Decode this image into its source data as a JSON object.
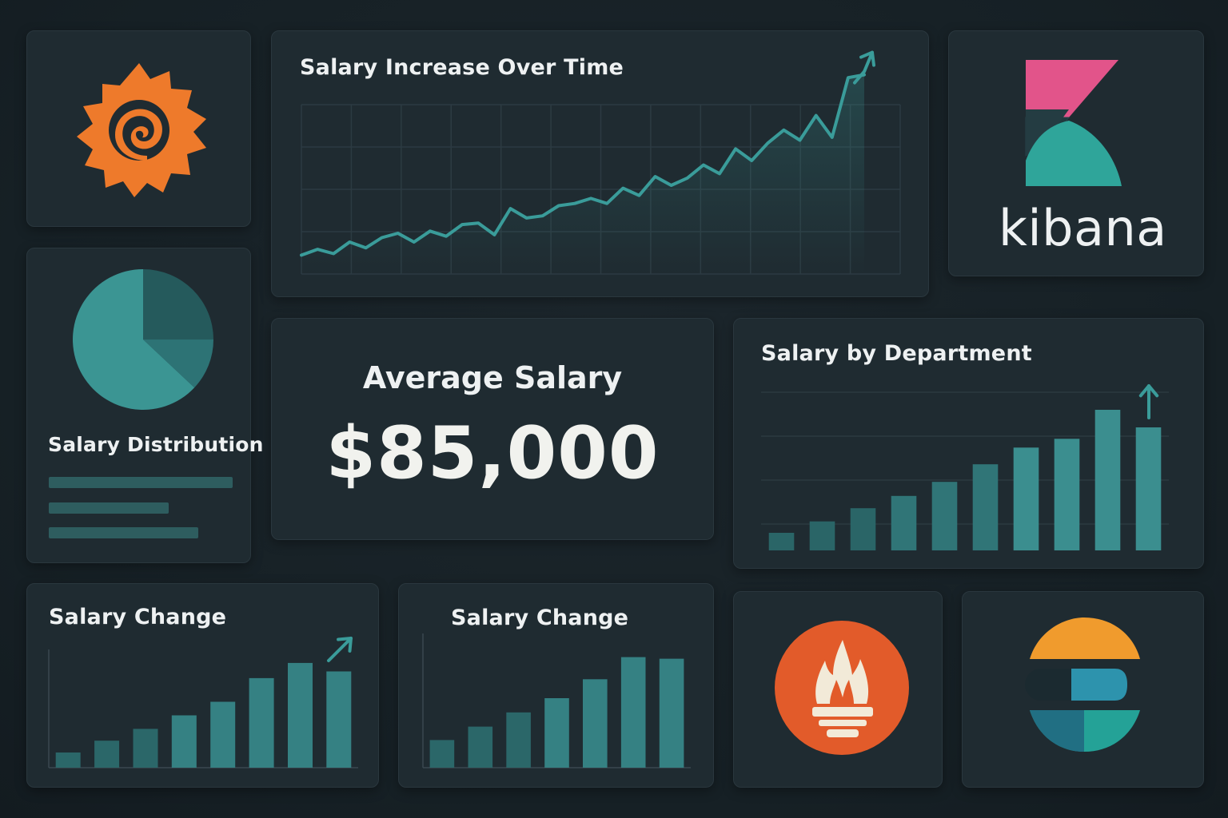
{
  "colors": {
    "accent": "#3a9c9a",
    "bar": "#3b8e8f",
    "bar_dark": "#2c6668",
    "grafana_orange": "#ee7a2b",
    "kibana_pink": "#e2548a",
    "prometheus_orange": "#e25b2a"
  },
  "logos": {
    "grafana": {
      "icon": "grafana-logo"
    },
    "kibana": {
      "icon": "kibana-logo",
      "wordmark": "kibana"
    },
    "prometheus": {
      "icon": "prometheus-logo"
    },
    "elastic": {
      "icon": "elastic-logo"
    }
  },
  "panels": {
    "salary_over_time": {
      "title": "Salary Increase Over Time",
      "icon": "trend-up-arrow-icon"
    },
    "salary_distribution": {
      "title": "Salary Distribution"
    },
    "average_salary": {
      "label": "Average Salary",
      "value": "$85,000"
    },
    "salary_by_department": {
      "title": "Salary by Department",
      "icon": "trend-up-arrow-icon"
    },
    "salary_change_1": {
      "title": "Salary Change",
      "icon": "trend-up-arrow-icon"
    },
    "salary_change_2": {
      "title": "Salary Change"
    }
  },
  "chart_data": [
    {
      "type": "line",
      "title": "Salary Increase Over Time",
      "x": [
        0,
        1,
        2,
        3,
        4,
        5,
        6,
        7,
        8,
        9,
        10,
        11,
        12,
        13,
        14,
        15,
        16,
        17,
        18,
        19,
        20,
        21,
        22,
        23,
        24,
        25,
        26,
        27,
        28,
        29,
        30,
        31,
        32,
        33,
        34,
        35
      ],
      "series": [
        {
          "values": [
            4,
            12,
            6,
            22,
            14,
            28,
            34,
            22,
            37,
            30,
            46,
            48,
            32,
            68,
            55,
            58,
            72,
            75,
            82,
            75,
            96,
            86,
            112,
            100,
            110,
            128,
            116,
            150,
            134,
            158,
            176,
            162,
            196,
            166,
            248,
            252
          ]
        }
      ],
      "ylim": [
        0,
        290
      ],
      "grid": true
    },
    {
      "type": "pie",
      "title": "Salary Distribution",
      "values": [
        63,
        25,
        12
      ]
    },
    {
      "type": "bar",
      "title": "Salary by Department",
      "values": [
        20,
        33,
        48,
        62,
        78,
        98,
        117,
        127,
        160,
        140
      ],
      "ylim": [
        0,
        180
      ],
      "grid": true
    },
    {
      "type": "bar",
      "title": "Salary Change",
      "values": [
        18,
        32,
        46,
        62,
        78,
        106,
        124,
        114
      ],
      "ylim": [
        0,
        140
      ]
    },
    {
      "type": "bar",
      "title": "Salary Change",
      "values": [
        35,
        52,
        70,
        88,
        112,
        140,
        138
      ],
      "ylim": [
        0,
        170
      ]
    }
  ]
}
